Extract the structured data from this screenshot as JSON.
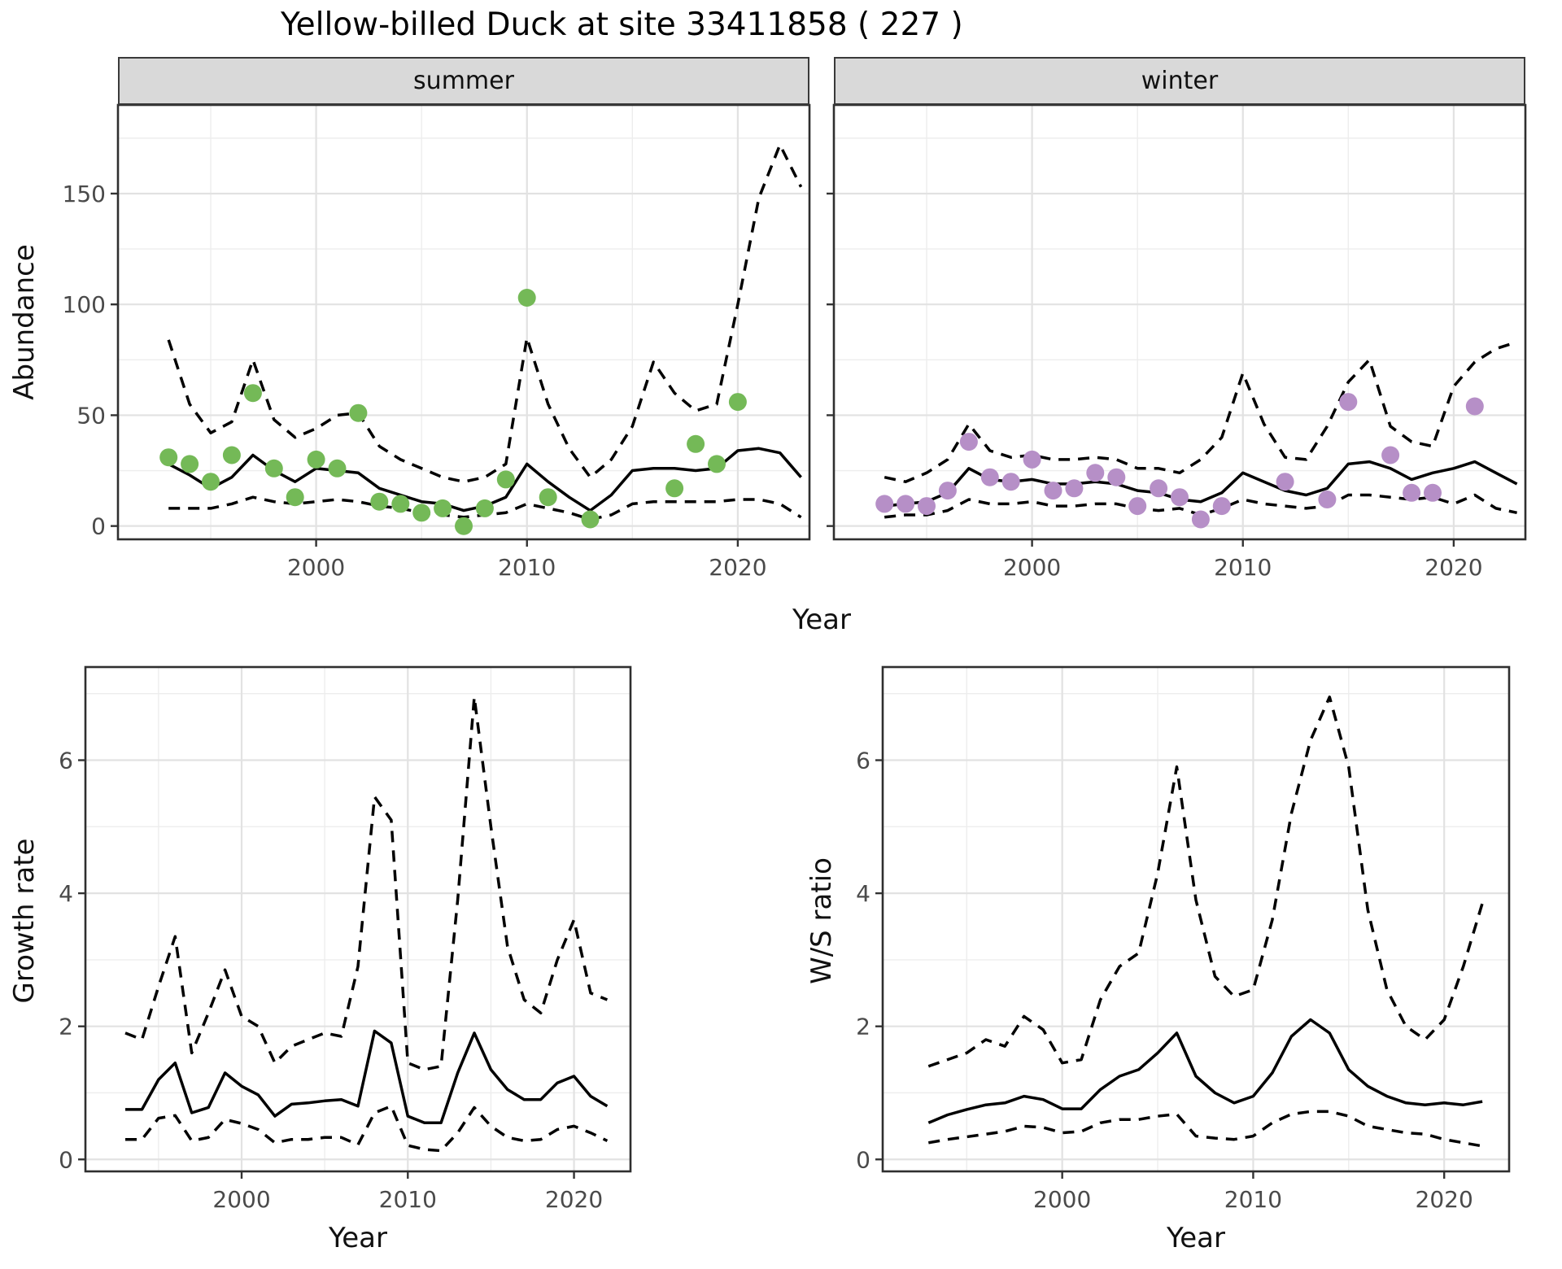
{
  "title": "Yellow-billed Duck at site 33411858 ( 227 )",
  "colors": {
    "summer_point": "#74B957",
    "winter_point": "#B68FC7",
    "line": "#000000",
    "strip_bg": "#d9d9d9",
    "grid_major": "#e2e2e2",
    "grid_minor": "#ededed",
    "panel_border": "#2f2f2f",
    "tick_mark": "#333333",
    "tick_text": "#4a4a4a"
  },
  "chart_data": [
    {
      "type": "line",
      "id": "abundance-summer",
      "facet_label": "summer",
      "xlabel": "Year",
      "ylabel": "Abundance",
      "x_ticks": [
        2000,
        2010,
        2020
      ],
      "x_minor": [
        1995,
        2005,
        2015
      ],
      "y_ticks": [
        0,
        50,
        100,
        150
      ],
      "y_minor": [
        25,
        75,
        125,
        175
      ],
      "xlim": [
        1990.6,
        2023.4
      ],
      "ylim": [
        -6,
        190
      ],
      "legend": "none",
      "series": [
        {
          "name": "median",
          "style": "solid",
          "x": [
            1993,
            1994,
            1995,
            1996,
            1997,
            1998,
            1999,
            2000,
            2001,
            2002,
            2003,
            2004,
            2005,
            2006,
            2007,
            2008,
            2009,
            2010,
            2011,
            2012,
            2013,
            2014,
            2015,
            2016,
            2017,
            2018,
            2019,
            2020,
            2021,
            2022,
            2023
          ],
          "y": [
            28,
            23,
            17,
            22,
            32,
            25,
            20,
            26,
            25,
            24,
            17,
            14,
            11,
            10,
            7,
            9,
            13,
            28,
            20,
            13,
            7,
            14,
            25,
            26,
            26,
            25,
            26,
            34,
            35,
            33,
            22
          ]
        },
        {
          "name": "lower95",
          "style": "dashed",
          "x": [
            1993,
            1994,
            1995,
            1996,
            1997,
            1998,
            1999,
            2000,
            2001,
            2002,
            2003,
            2004,
            2005,
            2006,
            2007,
            2008,
            2009,
            2010,
            2011,
            2012,
            2013,
            2014,
            2015,
            2016,
            2017,
            2018,
            2019,
            2020,
            2021,
            2022,
            2023
          ],
          "y": [
            8,
            8,
            8,
            10,
            13,
            11,
            10,
            11,
            12,
            11,
            9,
            8,
            6,
            5,
            4,
            5,
            6,
            10,
            8,
            6,
            3,
            5,
            10,
            11,
            11,
            11,
            11,
            12,
            12,
            10,
            4
          ]
        },
        {
          "name": "upper95",
          "style": "dashed",
          "x": [
            1993,
            1994,
            1995,
            1996,
            1997,
            1998,
            1999,
            2000,
            2001,
            2002,
            2003,
            2004,
            2005,
            2006,
            2007,
            2008,
            2009,
            2010,
            2011,
            2012,
            2013,
            2014,
            2015,
            2016,
            2017,
            2018,
            2019,
            2020,
            2021,
            2022,
            2023
          ],
          "y": [
            84,
            55,
            42,
            47,
            75,
            48,
            40,
            44,
            50,
            51,
            36,
            30,
            26,
            22,
            20,
            22,
            28,
            85,
            55,
            35,
            22,
            30,
            45,
            74,
            60,
            52,
            55,
            100,
            148,
            172,
            153
          ]
        },
        {
          "name": "observed-counts",
          "style": "points",
          "color": "#74B957",
          "x": [
            1993,
            1994,
            1995,
            1996,
            1997,
            1998,
            1999,
            2000,
            2001,
            2002,
            2003,
            2004,
            2005,
            2006,
            2007,
            2008,
            2009,
            2010,
            2011,
            2013,
            2017,
            2018,
            2019,
            2020
          ],
          "y": [
            31,
            28,
            20,
            32,
            60,
            26,
            13,
            30,
            26,
            51,
            11,
            10,
            6,
            8,
            0,
            8,
            21,
            103,
            13,
            3,
            17,
            37,
            28,
            56
          ]
        }
      ]
    },
    {
      "type": "line",
      "id": "abundance-winter",
      "facet_label": "winter",
      "xlabel": "Year",
      "ylabel": "Abundance",
      "x_ticks": [
        2000,
        2010,
        2020
      ],
      "x_minor": [
        1995,
        2005,
        2015
      ],
      "y_ticks": [
        0,
        50,
        100,
        150
      ],
      "y_minor": [
        25,
        75,
        125,
        175
      ],
      "xlim": [
        1990.6,
        2023.4
      ],
      "ylim": [
        -6,
        190
      ],
      "legend": "none",
      "series": [
        {
          "name": "median",
          "style": "solid",
          "x": [
            1993,
            1994,
            1995,
            1996,
            1997,
            1998,
            1999,
            2000,
            2001,
            2002,
            2003,
            2004,
            2005,
            2006,
            2007,
            2008,
            2009,
            2010,
            2011,
            2012,
            2013,
            2014,
            2015,
            2016,
            2017,
            2018,
            2019,
            2020,
            2021,
            2022,
            2023
          ],
          "y": [
            9,
            10,
            11,
            15,
            26,
            21,
            20,
            21,
            19,
            19,
            20,
            19,
            16,
            15,
            12,
            11,
            15,
            24,
            20,
            16,
            14,
            17,
            28,
            29,
            26,
            21,
            24,
            26,
            29,
            24,
            19
          ]
        },
        {
          "name": "lower95",
          "style": "dashed",
          "x": [
            1993,
            1994,
            1995,
            1996,
            1997,
            1998,
            1999,
            2000,
            2001,
            2002,
            2003,
            2004,
            2005,
            2006,
            2007,
            2008,
            2009,
            2010,
            2011,
            2012,
            2013,
            2014,
            2015,
            2016,
            2017,
            2018,
            2019,
            2020,
            2021,
            2022,
            2023
          ],
          "y": [
            4,
            5,
            5,
            7,
            12,
            10,
            10,
            11,
            9,
            9,
            10,
            10,
            8,
            7,
            8,
            5,
            8,
            12,
            10,
            9,
            8,
            9,
            14,
            14,
            13,
            12,
            13,
            10,
            14,
            8,
            6
          ]
        },
        {
          "name": "upper95",
          "style": "dashed",
          "x": [
            1993,
            1994,
            1995,
            1996,
            1997,
            1998,
            1999,
            2000,
            2001,
            2002,
            2003,
            2004,
            2005,
            2006,
            2007,
            2008,
            2009,
            2010,
            2011,
            2012,
            2013,
            2014,
            2015,
            2016,
            2017,
            2018,
            2019,
            2020,
            2021,
            2022,
            2023
          ],
          "y": [
            22,
            20,
            24,
            30,
            46,
            34,
            31,
            32,
            30,
            30,
            31,
            30,
            26,
            26,
            24,
            30,
            40,
            69,
            46,
            31,
            30,
            45,
            65,
            75,
            45,
            38,
            36,
            63,
            74,
            80,
            83
          ]
        },
        {
          "name": "observed-counts",
          "style": "points",
          "color": "#B68FC7",
          "x": [
            1993,
            1994,
            1995,
            1996,
            1997,
            1998,
            1999,
            2000,
            2001,
            2002,
            2003,
            2004,
            2005,
            2006,
            2007,
            2008,
            2009,
            2012,
            2014,
            2015,
            2017,
            2018,
            2019,
            2021
          ],
          "y": [
            10,
            10,
            9,
            16,
            38,
            22,
            20,
            30,
            16,
            17,
            24,
            22,
            9,
            17,
            13,
            3,
            9,
            20,
            12,
            56,
            32,
            15,
            15,
            54
          ]
        }
      ]
    },
    {
      "type": "line",
      "id": "growth",
      "facet_label": "",
      "xlabel": "Year",
      "ylabel": "Growth rate",
      "x_ticks": [
        2000,
        2010,
        2020
      ],
      "x_minor": [
        1995,
        2005,
        2015
      ],
      "y_ticks": [
        0,
        2,
        4,
        6
      ],
      "y_minor": [
        1,
        3,
        5,
        7
      ],
      "xlim": [
        1990.6,
        2023.4
      ],
      "ylim": [
        -0.18,
        7.4
      ],
      "legend": "none",
      "series": [
        {
          "name": "median",
          "style": "solid",
          "x": [
            1993,
            1994,
            1995,
            1996,
            1997,
            1998,
            1999,
            2000,
            2001,
            2002,
            2003,
            2004,
            2005,
            2006,
            2007,
            2008,
            2009,
            2010,
            2011,
            2012,
            2013,
            2014,
            2015,
            2016,
            2017,
            2018,
            2019,
            2020,
            2021,
            2022
          ],
          "y": [
            0.75,
            0.75,
            1.2,
            1.45,
            0.7,
            0.78,
            1.3,
            1.1,
            0.97,
            0.65,
            0.83,
            0.85,
            0.88,
            0.9,
            0.8,
            1.93,
            1.75,
            0.65,
            0.55,
            0.55,
            1.3,
            1.9,
            1.35,
            1.05,
            0.9,
            0.9,
            1.15,
            1.25,
            0.95,
            0.8
          ]
        },
        {
          "name": "lower95",
          "style": "dashed",
          "x": [
            1993,
            1994,
            1995,
            1996,
            1997,
            1998,
            1999,
            2000,
            2001,
            2002,
            2003,
            2004,
            2005,
            2006,
            2007,
            2008,
            2009,
            2010,
            2011,
            2012,
            2013,
            2014,
            2015,
            2016,
            2017,
            2018,
            2019,
            2020,
            2021,
            2022
          ],
          "y": [
            0.3,
            0.3,
            0.62,
            0.66,
            0.28,
            0.33,
            0.6,
            0.54,
            0.45,
            0.25,
            0.3,
            0.3,
            0.33,
            0.33,
            0.22,
            0.7,
            0.8,
            0.21,
            0.15,
            0.13,
            0.4,
            0.78,
            0.5,
            0.33,
            0.28,
            0.3,
            0.45,
            0.5,
            0.4,
            0.28
          ]
        },
        {
          "name": "upper95",
          "style": "dashed",
          "x": [
            1993,
            1994,
            1995,
            1996,
            1997,
            1998,
            1999,
            2000,
            2001,
            2002,
            2003,
            2004,
            2005,
            2006,
            2007,
            2008,
            2009,
            2010,
            2011,
            2012,
            2013,
            2014,
            2015,
            2016,
            2017,
            2018,
            2019,
            2020,
            2021,
            2022
          ],
          "y": [
            1.9,
            1.8,
            2.6,
            3.35,
            1.6,
            2.2,
            2.85,
            2.15,
            2.0,
            1.45,
            1.7,
            1.8,
            1.9,
            1.85,
            2.9,
            5.45,
            5.1,
            1.45,
            1.35,
            1.4,
            3.9,
            6.95,
            5.0,
            3.2,
            2.4,
            2.2,
            3.0,
            3.6,
            2.5,
            2.4
          ]
        }
      ]
    },
    {
      "type": "line",
      "id": "ws",
      "facet_label": "",
      "xlabel": "Year",
      "ylabel": "W/S ratio",
      "x_ticks": [
        2000,
        2010,
        2020
      ],
      "x_minor": [
        1995,
        2005,
        2015
      ],
      "y_ticks": [
        0,
        2,
        4,
        6
      ],
      "y_minor": [
        1,
        3,
        5,
        7
      ],
      "xlim": [
        1990.6,
        2023.4
      ],
      "ylim": [
        -0.18,
        7.4
      ],
      "legend": "none",
      "series": [
        {
          "name": "median",
          "style": "solid",
          "x": [
            1993,
            1994,
            1995,
            1996,
            1997,
            1998,
            1999,
            2000,
            2001,
            2002,
            2003,
            2004,
            2005,
            2006,
            2007,
            2008,
            2009,
            2010,
            2011,
            2012,
            2013,
            2014,
            2015,
            2016,
            2017,
            2018,
            2019,
            2020,
            2021,
            2022
          ],
          "y": [
            0.55,
            0.67,
            0.75,
            0.82,
            0.85,
            0.95,
            0.9,
            0.76,
            0.76,
            1.05,
            1.25,
            1.35,
            1.6,
            1.9,
            1.25,
            1.0,
            0.85,
            0.95,
            1.3,
            1.85,
            2.1,
            1.9,
            1.35,
            1.1,
            0.95,
            0.85,
            0.82,
            0.85,
            0.82,
            0.87
          ]
        },
        {
          "name": "lower95",
          "style": "dashed",
          "x": [
            1993,
            1994,
            1995,
            1996,
            1997,
            1998,
            1999,
            2000,
            2001,
            2002,
            2003,
            2004,
            2005,
            2006,
            2007,
            2008,
            2009,
            2010,
            2011,
            2012,
            2013,
            2014,
            2015,
            2016,
            2017,
            2018,
            2019,
            2020,
            2021,
            2022
          ],
          "y": [
            0.25,
            0.3,
            0.34,
            0.38,
            0.42,
            0.5,
            0.48,
            0.4,
            0.42,
            0.55,
            0.6,
            0.6,
            0.65,
            0.68,
            0.35,
            0.32,
            0.3,
            0.35,
            0.55,
            0.68,
            0.72,
            0.72,
            0.65,
            0.5,
            0.45,
            0.4,
            0.38,
            0.3,
            0.25,
            0.2
          ]
        },
        {
          "name": "upper95",
          "style": "dashed",
          "x": [
            1993,
            1994,
            1995,
            1996,
            1997,
            1998,
            1999,
            2000,
            2001,
            2002,
            2003,
            2004,
            2005,
            2006,
            2007,
            2008,
            2009,
            2010,
            2011,
            2012,
            2013,
            2014,
            2015,
            2016,
            2017,
            2018,
            2019,
            2020,
            2021,
            2022
          ],
          "y": [
            1.4,
            1.5,
            1.6,
            1.8,
            1.7,
            2.15,
            1.95,
            1.45,
            1.5,
            2.4,
            2.9,
            3.1,
            4.3,
            5.9,
            3.9,
            2.75,
            2.45,
            2.55,
            3.6,
            5.2,
            6.3,
            6.95,
            5.9,
            3.75,
            2.55,
            2.0,
            1.8,
            2.1,
            2.9,
            3.85
          ]
        }
      ]
    }
  ]
}
